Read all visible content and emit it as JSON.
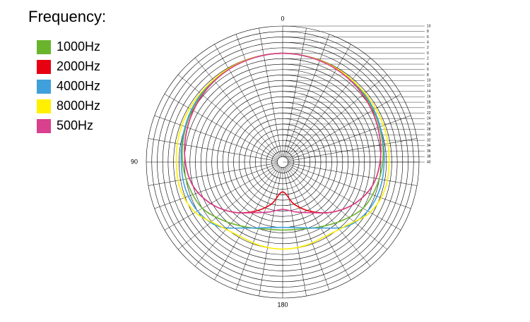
{
  "chart_data": {
    "type": "polar",
    "legend_title": "Frequency:",
    "zero": "top",
    "direction": "counterclockwise",
    "theta": [
      0,
      15,
      30,
      45,
      60,
      75,
      90,
      105,
      120,
      135,
      150,
      165,
      180,
      195,
      210,
      225,
      240,
      255,
      270,
      285,
      300,
      315,
      330,
      345
    ],
    "angle_ticks": [
      0,
      90,
      180
    ],
    "rlim": [
      -40,
      10
    ],
    "rticks": [
      10,
      8,
      6,
      4,
      2,
      0,
      {
        "value": -2,
        "label": "2"
      },
      {
        "value": -4,
        "label": "4"
      },
      {
        "value": -6,
        "label": "6"
      },
      {
        "value": -8,
        "label": "8"
      },
      {
        "value": -10,
        "label": "10"
      },
      {
        "value": -12,
        "label": "12"
      },
      {
        "value": -14,
        "label": "14"
      },
      {
        "value": -16,
        "label": "16"
      },
      {
        "value": -18,
        "label": "18"
      },
      {
        "value": -20,
        "label": "20"
      },
      {
        "value": -22,
        "label": "22"
      },
      {
        "value": -24,
        "label": "24"
      },
      {
        "value": -26,
        "label": "26"
      },
      {
        "value": -28,
        "label": "28"
      },
      {
        "value": -30,
        "label": "30"
      },
      {
        "value": -32,
        "label": "32"
      },
      {
        "value": -34,
        "label": "34"
      },
      {
        "value": -36,
        "label": "36"
      },
      {
        "value": -38,
        "label": "38"
      },
      {
        "value": -40,
        "label": "40"
      }
    ],
    "series": [
      {
        "name": "1000Hz",
        "color": "#6ab42d",
        "values": [
          0,
          -0.2,
          -0.5,
          -1,
          -1.7,
          -2.5,
          -3.3,
          -4.5,
          -6,
          -9.5,
          -12.5,
          -14.5,
          -15,
          -14.5,
          -12.5,
          -9.5,
          -6,
          -4.5,
          -3.3,
          -2.5,
          -1.7,
          -1,
          -0.5,
          -0.2
        ]
      },
      {
        "name": "2000Hz",
        "color": "#e60012",
        "values": [
          0,
          -0.2,
          -0.6,
          -1.3,
          -2.2,
          -3.2,
          -4.3,
          -6,
          -9.5,
          -14,
          -19,
          -24,
          -29,
          -24,
          -19,
          -14,
          -9.5,
          -6,
          -4.3,
          -3.2,
          -2.2,
          -1.3,
          -0.6,
          -0.2
        ]
      },
      {
        "name": "4000Hz",
        "color": "#3fa0db",
        "values": [
          0,
          -0.2,
          -0.4,
          -0.8,
          -1.4,
          -2.2,
          -2.8,
          -3,
          -4,
          -6.6,
          -12,
          -15,
          -16,
          -15,
          -12,
          -6.6,
          -4,
          -3,
          -2.8,
          -2.2,
          -1.4,
          -0.8,
          -0.4,
          -0.2
        ]
      },
      {
        "name": "8000Hz",
        "color": "#fff000",
        "values": [
          0,
          -0.1,
          -0.3,
          -0.6,
          -0.6,
          -0.7,
          -1,
          -1.2,
          -3,
          -7,
          -8.5,
          -8.2,
          -8,
          -8.2,
          -8.5,
          -7,
          -3,
          -1.2,
          -1,
          -0.7,
          -0.6,
          -0.6,
          -0.3,
          -0.1
        ]
      },
      {
        "name": "500Hz",
        "color": "#d9408e",
        "values": [
          0,
          -0.2,
          -0.6,
          -1.3,
          -2.2,
          -3.2,
          -4.3,
          -6,
          -9.5,
          -14,
          -18.5,
          -21,
          -22.6,
          -21,
          -18.5,
          -14,
          -9.5,
          -6,
          -4.3,
          -3.2,
          -2.2,
          -1.3,
          -0.6,
          -0.2
        ]
      }
    ]
  }
}
